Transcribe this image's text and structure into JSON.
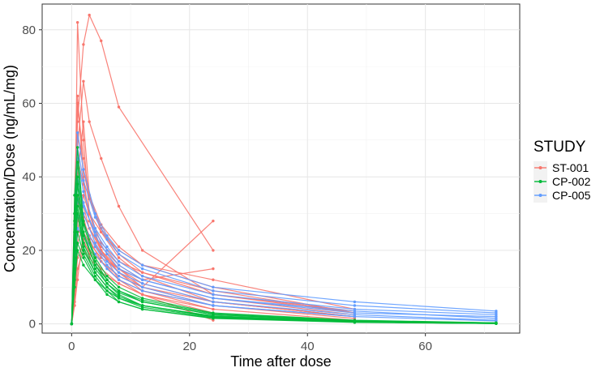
{
  "chart_data": {
    "type": "line",
    "xlabel": "Time after dose",
    "ylabel": "Concentration/Dose (ng/mL/mg)",
    "xlim": [
      -5,
      76
    ],
    "ylim": [
      -2.5,
      87
    ],
    "xticks": [
      0,
      20,
      40,
      60
    ],
    "yticks": [
      0,
      20,
      40,
      60,
      80
    ],
    "grid": true,
    "legend": {
      "title": "STUDY",
      "placement": "right",
      "entries": [
        "ST-001",
        "CP-002",
        "CP-005"
      ]
    },
    "colors": {
      "ST-001": "#F8766D",
      "CP-002": "#00BA38",
      "CP-005": "#619CFF"
    },
    "series": [
      {
        "name": "ST-001",
        "profiles": [
          {
            "x": [
              0,
              0.5,
              1,
              2,
              3,
              5,
              8,
              12,
              24
            ],
            "y": [
              0,
              20,
              82,
              50,
              30,
              20,
              14,
              9,
              4
            ]
          },
          {
            "x": [
              0,
              0.5,
              1,
              2,
              3,
              5,
              8,
              24
            ],
            "y": [
              0,
              30,
              55,
              76,
              84,
              77,
              59,
              20
            ]
          },
          {
            "x": [
              0,
              0.5,
              1,
              2,
              3,
              5,
              8,
              12,
              24
            ],
            "y": [
              0,
              35,
              62,
              40,
              28,
              20,
              15,
              10,
              28
            ]
          },
          {
            "x": [
              0,
              0.5,
              1,
              2,
              3,
              5,
              8,
              12,
              24,
              48
            ],
            "y": [
              0,
              25,
              48,
              66,
              55,
              45,
              32,
              20,
              8,
              3
            ]
          },
          {
            "x": [
              0,
              0.5,
              1,
              2,
              3,
              5,
              8,
              12,
              24,
              48
            ],
            "y": [
              0,
              18,
              40,
              55,
              35,
              25,
              18,
              13,
              6,
              2
            ]
          },
          {
            "x": [
              0,
              0.5,
              1,
              2,
              3,
              5,
              8,
              12,
              24,
              48
            ],
            "y": [
              0,
              10,
              25,
              35,
              30,
              22,
              17,
              14,
              9,
              3
            ]
          },
          {
            "x": [
              0,
              0.5,
              1,
              2,
              3,
              5,
              8,
              12,
              24,
              48
            ],
            "y": [
              0,
              30,
              45,
              38,
              30,
              25,
              20,
              16,
              12,
              4
            ]
          },
          {
            "x": [
              0,
              0.5,
              1,
              2,
              3,
              5,
              8,
              12,
              24,
              48
            ],
            "y": [
              0,
              15,
              30,
              28,
              24,
              19,
              14,
              10,
              6,
              2
            ]
          },
          {
            "x": [
              0,
              0.5,
              1,
              2,
              3,
              5,
              8,
              12,
              24,
              48
            ],
            "y": [
              0,
              8,
              18,
              22,
              20,
              17,
              13,
              10,
              5,
              1.5
            ]
          },
          {
            "x": [
              0,
              0.5,
              1,
              2,
              3,
              5,
              8,
              12,
              24
            ],
            "y": [
              0,
              5,
              12,
              25,
              22,
              18,
              15,
              12,
              15
            ]
          },
          {
            "x": [
              0,
              0.5,
              1,
              2,
              3,
              5,
              8,
              12,
              24,
              48
            ],
            "y": [
              0,
              20,
              35,
              30,
              26,
              21,
              16,
              12,
              7,
              2.5
            ]
          },
          {
            "x": [
              0,
              0.5,
              1,
              2,
              3,
              5,
              8,
              12,
              24
            ],
            "y": [
              0,
              12,
              28,
              32,
              26,
              20,
              12,
              8,
              1
            ]
          },
          {
            "x": [
              0,
              0.5,
              1,
              2,
              3,
              5,
              8,
              12,
              24,
              48
            ],
            "y": [
              0,
              28,
              52,
              42,
              34,
              26,
              19,
              14,
              8,
              3.5
            ]
          },
          {
            "x": [
              0,
              0.5,
              1,
              2,
              3,
              5,
              8,
              12,
              24,
              48
            ],
            "y": [
              0,
              6,
              15,
              20,
              18,
              14,
              11,
              8,
              4,
              1
            ]
          },
          {
            "x": [
              0,
              0.5,
              1,
              2,
              3,
              5,
              8,
              12,
              24,
              48
            ],
            "y": [
              0,
              22,
              60,
              45,
              35,
              27,
              21,
              16,
              10,
              3
            ]
          },
          {
            "x": [
              0,
              0.5,
              1,
              2,
              3,
              5,
              8,
              12,
              24
            ],
            "y": [
              0,
              16,
              33,
              29,
              23,
              17,
              12,
              9,
              5
            ]
          },
          {
            "x": [
              0,
              0.5,
              1,
              2,
              3,
              5,
              8,
              12,
              24,
              48
            ],
            "y": [
              0,
              9,
              22,
              27,
              24,
              19,
              15,
              11,
              6,
              2
            ]
          },
          {
            "x": [
              0,
              0.5,
              1,
              2,
              3,
              5,
              8,
              12,
              24
            ],
            "y": [
              0,
              14,
              26,
              23,
              19,
              15,
              11,
              8,
              3
            ]
          }
        ]
      },
      {
        "name": "CP-005",
        "profiles": [
          {
            "x": [
              0,
              0.5,
              1,
              2,
              4,
              6,
              8,
              12,
              24,
              48,
              72
            ],
            "y": [
              0,
              30,
              52,
              42,
              30,
              24,
              20,
              16,
              10,
              6,
              3.5
            ]
          },
          {
            "x": [
              0,
              0.5,
              1,
              2,
              4,
              6,
              8,
              12,
              24,
              48,
              72
            ],
            "y": [
              0,
              25,
              45,
              36,
              26,
              21,
              17,
              13,
              8,
              4,
              2.5
            ]
          },
          {
            "x": [
              0,
              0.5,
              1,
              2,
              4,
              6,
              8,
              12,
              24,
              48,
              72
            ],
            "y": [
              0,
              20,
              40,
              33,
              24,
              19,
              15,
              12,
              7,
              3,
              2
            ]
          },
          {
            "x": [
              0,
              0.5,
              1,
              2,
              4,
              6,
              8,
              12,
              24,
              48,
              72
            ],
            "y": [
              0,
              18,
              34,
              30,
              22,
              17,
              14,
              11,
              6,
              2.5,
              1
            ]
          },
          {
            "x": [
              0,
              0.5,
              1,
              2,
              4,
              6,
              8,
              12,
              24,
              48,
              72
            ],
            "y": [
              0,
              22,
              38,
              32,
              25,
              20,
              16,
              12,
              7,
              3.5,
              1.5
            ]
          },
          {
            "x": [
              0,
              0.5,
              1,
              2,
              4,
              6,
              8,
              12,
              24,
              48,
              72
            ],
            "y": [
              0,
              15,
              30,
              27,
              21,
              16,
              13,
              10,
              5,
              2,
              0.8
            ]
          },
          {
            "x": [
              0,
              0.5,
              1,
              2,
              4,
              6,
              8,
              12,
              24,
              48,
              72
            ],
            "y": [
              0,
              27,
              48,
              39,
              29,
              23,
              19,
              15,
              9,
              5,
              3
            ]
          },
          {
            "x": [
              0,
              0.5,
              1,
              2,
              4,
              6,
              8,
              12,
              24,
              48
            ],
            "y": [
              0,
              12,
              26,
              24,
              19,
              15,
              12,
              9,
              5,
              2
            ]
          }
        ]
      },
      {
        "name": "CP-002",
        "profiles": [
          {
            "x": [
              0,
              0.5,
              1,
              2,
              4,
              6,
              8,
              12,
              24,
              48,
              72
            ],
            "y": [
              0,
              35,
              48,
              28,
              18,
              13,
              10,
              7,
              3,
              1,
              0.3
            ]
          },
          {
            "x": [
              0,
              0.5,
              1,
              2,
              4,
              6,
              8,
              12,
              24,
              48,
              72
            ],
            "y": [
              0,
              28,
              40,
              25,
              16,
              12,
              9,
              6,
              2.5,
              0.8,
              0.2
            ]
          },
          {
            "x": [
              0,
              0.5,
              1,
              2,
              4,
              6,
              8,
              12,
              24,
              48,
              72
            ],
            "y": [
              0,
              22,
              35,
              22,
              15,
              11,
              8,
              5,
              2,
              0.6,
              0.2
            ]
          },
          {
            "x": [
              0,
              0.5,
              1,
              2,
              4,
              6,
              8,
              12,
              24,
              48,
              72
            ],
            "y": [
              0,
              18,
              30,
              20,
              14,
              10,
              7,
              5,
              2,
              0.5,
              0.1
            ]
          },
          {
            "x": [
              0,
              0.5,
              1,
              2,
              4,
              6,
              8,
              12,
              24,
              48,
              72
            ],
            "y": [
              0,
              15,
              25,
              19,
              13,
              9,
              7,
              4.5,
              1.8,
              0.5,
              0.1
            ]
          },
          {
            "x": [
              0,
              0.5,
              1,
              2,
              4,
              6,
              8,
              12,
              24,
              48,
              72
            ],
            "y": [
              0,
              12,
              22,
              18,
              12,
              9,
              6,
              4,
              1.5,
              0.4,
              0.1
            ]
          },
          {
            "x": [
              0,
              0.5,
              1,
              2,
              4,
              6,
              8,
              12,
              24,
              48,
              72
            ],
            "y": [
              0,
              30,
              44,
              27,
              17,
              12,
              9,
              6.5,
              2.8,
              0.9,
              0.3
            ]
          },
          {
            "x": [
              0,
              0.5,
              1,
              2,
              4,
              6,
              8,
              12,
              24,
              48,
              72
            ],
            "y": [
              0,
              20,
              32,
              21,
              14,
              10,
              7.5,
              5,
              2.2,
              0.7,
              0.2
            ]
          },
          {
            "x": [
              0,
              0.5,
              1,
              2,
              4,
              6,
              8,
              12,
              24,
              48,
              72
            ],
            "y": [
              0,
              10,
              20,
              16,
              12,
              8,
              6,
              4,
              1.6,
              0.5,
              0.1
            ]
          },
          {
            "x": [
              0,
              0.5,
              1,
              2,
              4,
              6,
              8,
              12,
              24,
              48,
              72
            ],
            "y": [
              0,
              25,
              38,
              24,
              16,
              11,
              8.5,
              6,
              2.5,
              0.8,
              0.2
            ]
          }
        ]
      }
    ]
  }
}
